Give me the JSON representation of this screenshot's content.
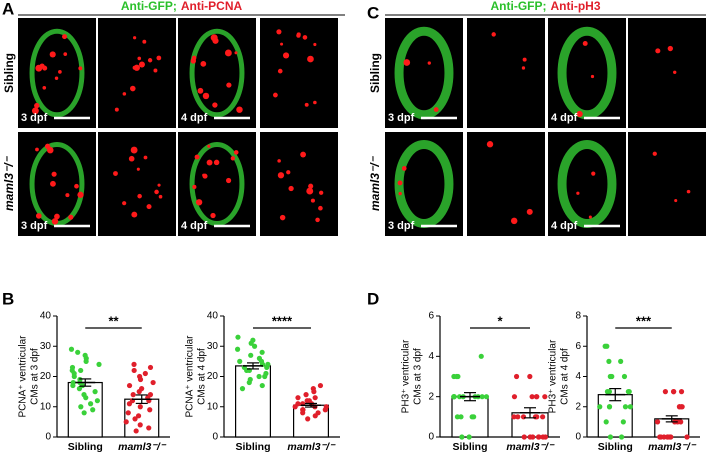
{
  "panel_letters": [
    "A",
    "B",
    "C",
    "D"
  ],
  "image_panels": [
    {
      "header": [
        "Anti-GFP;",
        "Anti-PCNA"
      ],
      "rows": [
        "Sibling",
        "maml3⁻/⁻"
      ],
      "stages": [
        "3 dpf",
        "4 dpf"
      ]
    },
    {
      "header": [
        "Anti-GFP;",
        "Anti-pH3"
      ],
      "rows": [
        "Sibling",
        "maml3⁻/⁻"
      ],
      "stages": [
        "3 dpf",
        "4 dpf"
      ]
    }
  ],
  "chart_data": [
    {
      "type": "bar",
      "ylabel": [
        "PCNA⁺ ventricular",
        "CMs at 3 dpf"
      ],
      "categories": [
        "Sibling",
        "maml3⁻/⁻"
      ],
      "colors": [
        "#3ad13a",
        "#e01f2b"
      ],
      "values": [
        18,
        12.5
      ],
      "errors": [
        1.2,
        1.4
      ],
      "significance": "**",
      "ylim": [
        0,
        40
      ],
      "yticks": [
        0,
        10,
        20,
        30,
        40
      ],
      "points": [
        [
          29,
          28,
          27,
          26,
          25,
          24,
          23,
          22,
          22,
          21,
          20,
          19,
          18,
          18,
          17,
          17,
          16,
          15,
          14,
          13,
          12,
          11,
          10,
          9,
          8
        ],
        [
          24,
          23,
          22,
          21,
          20,
          19,
          18,
          17,
          16,
          15,
          14,
          14,
          13,
          12,
          12,
          11,
          10,
          9,
          8,
          7,
          6,
          5,
          4,
          3,
          2
        ]
      ]
    },
    {
      "type": "bar",
      "ylabel": [
        "PCNA⁺ ventricular",
        "CMs at 4 dpf"
      ],
      "categories": [
        "Sibling",
        "maml3⁻/⁻"
      ],
      "colors": [
        "#3ad13a",
        "#e01f2b"
      ],
      "values": [
        23.5,
        10.5
      ],
      "errors": [
        1,
        0.6
      ],
      "significance": "****",
      "ylim": [
        0,
        40
      ],
      "yticks": [
        0,
        10,
        20,
        30,
        40
      ],
      "points": [
        [
          33,
          32,
          31,
          30,
          29,
          28,
          27,
          26,
          25,
          25,
          24,
          24,
          23,
          23,
          22,
          22,
          21,
          20,
          20,
          19,
          18,
          17,
          16
        ],
        [
          17,
          16,
          15,
          14,
          13,
          13,
          12,
          12,
          11,
          11,
          11,
          10,
          10,
          10,
          9,
          9,
          9,
          8,
          8,
          7,
          6
        ]
      ]
    },
    {
      "type": "bar",
      "ylabel": [
        "PH3⁺ ventricular",
        "CMs at 3 dpf"
      ],
      "categories": [
        "Sibling",
        "maml3⁻/⁻"
      ],
      "colors": [
        "#3ad13a",
        "#e01f2b"
      ],
      "values": [
        2,
        1.2
      ],
      "errors": [
        0.2,
        0.25
      ],
      "significance": "*",
      "ylim": [
        0,
        6
      ],
      "yticks": [
        0,
        2,
        4,
        6
      ],
      "points": [
        [
          4,
          3,
          3,
          3,
          2,
          2,
          2,
          2,
          2,
          2,
          2,
          2,
          2,
          2,
          1,
          1,
          1,
          1,
          0,
          0
        ],
        [
          3,
          3,
          2,
          2,
          2,
          2,
          2,
          1,
          1,
          1,
          1,
          1,
          1,
          0,
          0,
          0,
          0,
          0,
          0,
          0
        ]
      ]
    },
    {
      "type": "bar",
      "ylabel": [
        "PH3⁺ ventricular",
        "CMs at 4 dpf"
      ],
      "categories": [
        "Sibling",
        "maml3⁻/⁻"
      ],
      "colors": [
        "#3ad13a",
        "#e01f2b"
      ],
      "values": [
        2.8,
        1.2
      ],
      "errors": [
        0.4,
        0.2
      ],
      "significance": "***",
      "ylim": [
        0,
        8
      ],
      "yticks": [
        0,
        2,
        4,
        6,
        8
      ],
      "points": [
        [
          6,
          6,
          5,
          5,
          4,
          4,
          4,
          3,
          3,
          3,
          3,
          2,
          2,
          2,
          2,
          2,
          1,
          1,
          0,
          0
        ],
        [
          3,
          3,
          3,
          3,
          2,
          2,
          2,
          2,
          1,
          1,
          1,
          1,
          0,
          0,
          0,
          0,
          0,
          0,
          0,
          0
        ]
      ]
    }
  ]
}
